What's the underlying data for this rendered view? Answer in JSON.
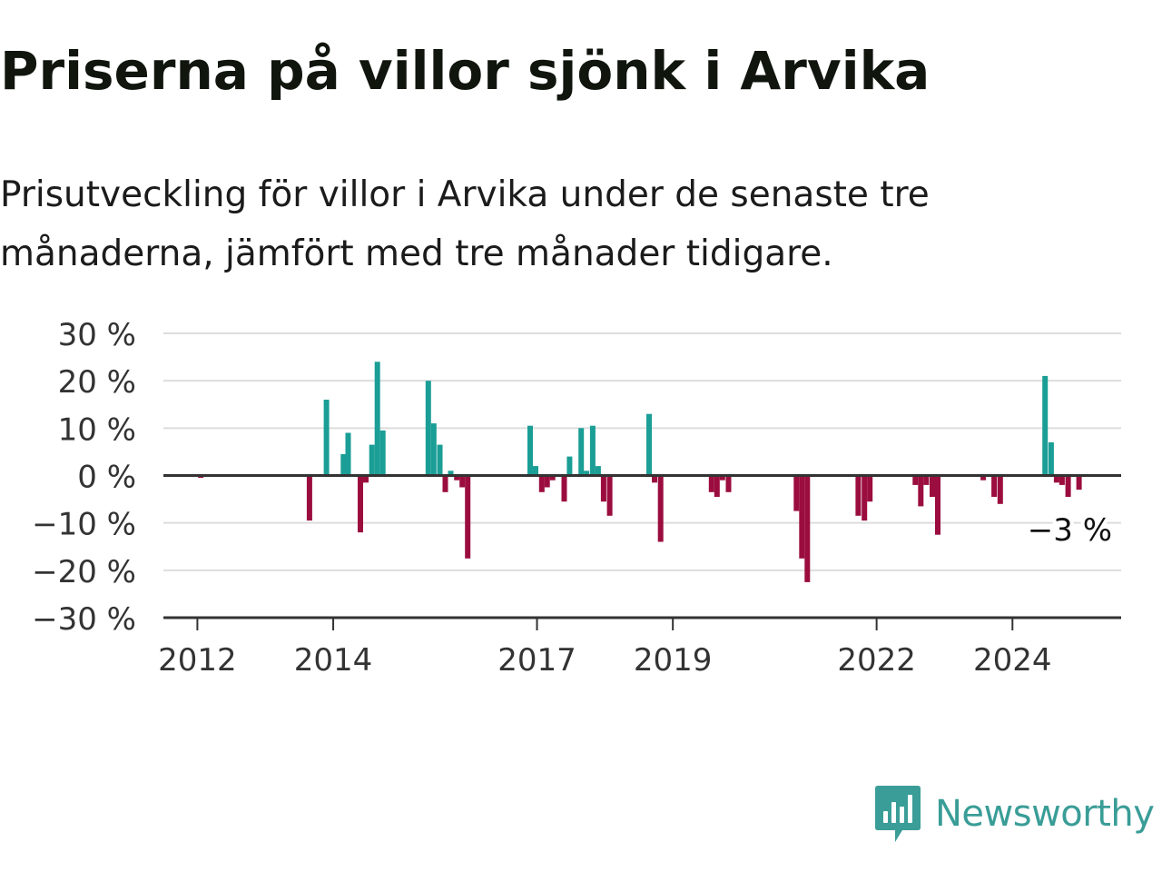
{
  "header": {
    "title": "Priserna på villor sjönk i Arvika",
    "subtitle": "Prisutveckling för villor i Arvika under de senaste tre månaderna, jämfört med tre månader tidigare."
  },
  "brand": {
    "name": "Newsworthy",
    "color": "#3a9d97",
    "icon": "bar-chart-speech-bubble-icon"
  },
  "colors": {
    "positive": "#1a9e96",
    "negative": "#9b0d3e",
    "grid": "#dddddd",
    "zero_line": "#333333"
  },
  "chart_data": {
    "type": "bar",
    "title": "",
    "xlabel": "",
    "ylabel": "",
    "ylim": [
      -30,
      30
    ],
    "yticks": [
      30,
      20,
      10,
      0,
      -10,
      -20,
      -30
    ],
    "ytick_labels": [
      "30 %",
      "20 %",
      "10 %",
      "0 %",
      "−10 %",
      "−20 %",
      "−30 %"
    ],
    "xticks": [
      2012,
      2014,
      2017,
      2019,
      2022,
      2024
    ],
    "xtick_labels": [
      "2012",
      "2014",
      "2017",
      "2019",
      "2022",
      "2024"
    ],
    "xlim": [
      2011.5,
      2025.6
    ],
    "grid": true,
    "last_value_label": "−3 %",
    "series": [
      {
        "values": [
          {
            "x": 2012.05,
            "y": -0.5
          },
          {
            "x": 2013.65,
            "y": -9.5
          },
          {
            "x": 2013.9,
            "y": 16
          },
          {
            "x": 2014.15,
            "y": 4.5
          },
          {
            "x": 2014.22,
            "y": 9
          },
          {
            "x": 2014.4,
            "y": -12
          },
          {
            "x": 2014.48,
            "y": -1.5
          },
          {
            "x": 2014.57,
            "y": 6.5
          },
          {
            "x": 2014.65,
            "y": 24
          },
          {
            "x": 2014.73,
            "y": 9.5
          },
          {
            "x": 2015.4,
            "y": 20
          },
          {
            "x": 2015.48,
            "y": 11
          },
          {
            "x": 2015.57,
            "y": 6.5
          },
          {
            "x": 2015.65,
            "y": -3.5
          },
          {
            "x": 2015.73,
            "y": 1
          },
          {
            "x": 2015.82,
            "y": -1
          },
          {
            "x": 2015.9,
            "y": -2.5
          },
          {
            "x": 2015.98,
            "y": -17.5
          },
          {
            "x": 2016.9,
            "y": 10.5
          },
          {
            "x": 2016.98,
            "y": 2
          },
          {
            "x": 2017.07,
            "y": -3.5
          },
          {
            "x": 2017.15,
            "y": -2.5
          },
          {
            "x": 2017.23,
            "y": -1
          },
          {
            "x": 2017.4,
            "y": -5.5
          },
          {
            "x": 2017.48,
            "y": 4
          },
          {
            "x": 2017.65,
            "y": 10
          },
          {
            "x": 2017.73,
            "y": 1
          },
          {
            "x": 2017.82,
            "y": 10.5
          },
          {
            "x": 2017.9,
            "y": 2
          },
          {
            "x": 2017.98,
            "y": -5.5
          },
          {
            "x": 2018.07,
            "y": -8.5
          },
          {
            "x": 2018.65,
            "y": 13
          },
          {
            "x": 2018.73,
            "y": -1.5
          },
          {
            "x": 2018.82,
            "y": -14
          },
          {
            "x": 2019.57,
            "y": -3.5
          },
          {
            "x": 2019.65,
            "y": -4.5
          },
          {
            "x": 2019.73,
            "y": -1
          },
          {
            "x": 2019.82,
            "y": -3.5
          },
          {
            "x": 2020.82,
            "y": -7.5
          },
          {
            "x": 2020.9,
            "y": -17.5
          },
          {
            "x": 2020.98,
            "y": -22.5
          },
          {
            "x": 2021.73,
            "y": -8.5
          },
          {
            "x": 2021.82,
            "y": -9.5
          },
          {
            "x": 2021.9,
            "y": -5.5
          },
          {
            "x": 2022.57,
            "y": -2
          },
          {
            "x": 2022.65,
            "y": -6.5
          },
          {
            "x": 2022.73,
            "y": -2
          },
          {
            "x": 2022.82,
            "y": -4.5
          },
          {
            "x": 2022.9,
            "y": -12.5
          },
          {
            "x": 2023.57,
            "y": -1
          },
          {
            "x": 2023.73,
            "y": -4.5
          },
          {
            "x": 2023.82,
            "y": -6
          },
          {
            "x": 2024.48,
            "y": 21
          },
          {
            "x": 2024.57,
            "y": 7
          },
          {
            "x": 2024.65,
            "y": -1.5
          },
          {
            "x": 2024.73,
            "y": -2
          },
          {
            "x": 2024.82,
            "y": -4.5
          },
          {
            "x": 2024.98,
            "y": -3
          }
        ]
      }
    ]
  }
}
